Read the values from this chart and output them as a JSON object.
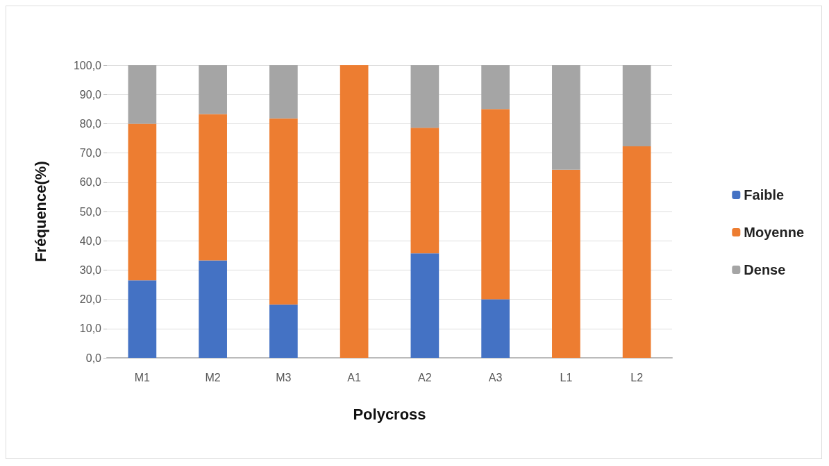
{
  "chart_data": {
    "type": "bar",
    "stacked": true,
    "xlabel": "Polycross",
    "ylabel": "Fréquence(%)",
    "categories": [
      "M1",
      "M2",
      "M3",
      "A1",
      "A2",
      "A3",
      "L1",
      "L2"
    ],
    "series": [
      {
        "name": "Faible",
        "color": "#4472c4",
        "values": [
          26.5,
          33.3,
          18.2,
          0,
          35.7,
          20.0,
          0,
          0
        ]
      },
      {
        "name": "Moyenne",
        "color": "#ed7d31",
        "values": [
          53.5,
          50.0,
          63.6,
          100,
          42.9,
          65.0,
          64.3,
          72.3
        ]
      },
      {
        "name": "Dense",
        "color": "#a5a5a5",
        "values": [
          20.0,
          16.7,
          18.2,
          0,
          21.4,
          15.0,
          35.7,
          27.7
        ]
      }
    ],
    "ylim": [
      0,
      100
    ],
    "yticks": [
      {
        "value": 0,
        "label": "0,0"
      },
      {
        "value": 10,
        "label": "10,0"
      },
      {
        "value": 20,
        "label": "20,0"
      },
      {
        "value": 30,
        "label": "30,0"
      },
      {
        "value": 40,
        "label": "40,0"
      },
      {
        "value": 50,
        "label": "50,0"
      },
      {
        "value": 60,
        "label": "60,0"
      },
      {
        "value": 70,
        "label": "70,0"
      },
      {
        "value": 80,
        "label": "80,0"
      },
      {
        "value": 90,
        "label": "90,0"
      },
      {
        "value": 100,
        "label": "100,0"
      }
    ],
    "grid": "y",
    "legend": "right"
  }
}
